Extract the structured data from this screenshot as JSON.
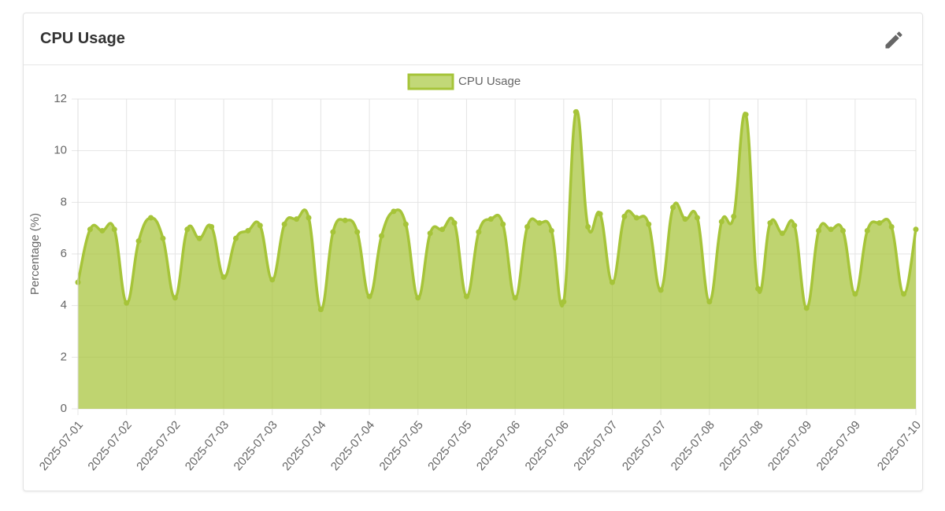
{
  "card": {
    "title": "CPU Usage"
  },
  "chart_data": {
    "type": "area",
    "ylabel": "Percentage (%)",
    "categories": [
      "2025-07-01",
      null,
      null,
      null,
      "2025-07-02",
      null,
      null,
      null,
      "2025-07-02",
      null,
      null,
      null,
      "2025-07-03",
      null,
      null,
      null,
      "2025-07-03",
      null,
      null,
      null,
      "2025-07-04",
      null,
      null,
      null,
      "2025-07-04",
      null,
      null,
      null,
      "2025-07-05",
      null,
      null,
      null,
      "2025-07-05",
      null,
      null,
      null,
      "2025-07-06",
      null,
      null,
      null,
      "2025-07-06",
      null,
      null,
      null,
      "2025-07-07",
      null,
      null,
      null,
      "2025-07-07",
      null,
      null,
      null,
      "2025-07-08",
      null,
      null,
      null,
      "2025-07-08",
      null,
      null,
      null,
      "2025-07-09",
      null,
      null,
      null,
      "2025-07-09",
      null,
      null,
      null,
      null,
      "2025-07-10"
    ],
    "series": [
      {
        "name": "CPU Usage",
        "color": "#a6c439",
        "values": [
          4.9,
          6.95,
          6.9,
          6.95,
          4.1,
          6.5,
          7.4,
          6.6,
          4.3,
          6.95,
          6.6,
          7.05,
          5.1,
          6.6,
          6.9,
          7.1,
          5.0,
          7.15,
          7.35,
          7.4,
          3.85,
          6.85,
          7.3,
          6.85,
          4.35,
          6.7,
          7.65,
          7.15,
          4.3,
          6.8,
          6.95,
          7.2,
          4.35,
          6.85,
          7.35,
          7.15,
          4.3,
          7.05,
          7.2,
          6.9,
          4.15,
          11.5,
          7.05,
          7.55,
          4.9,
          7.45,
          7.4,
          7.15,
          4.6,
          7.8,
          7.35,
          7.4,
          4.15,
          7.25,
          7.45,
          11.4,
          4.65,
          7.2,
          6.8,
          7.1,
          3.9,
          6.9,
          6.95,
          6.9,
          4.45,
          6.9,
          7.2,
          7.05,
          4.45,
          6.95
        ]
      }
    ],
    "ylim": [
      0,
      12
    ],
    "yticks": [
      0,
      2,
      4,
      6,
      8,
      10,
      12
    ],
    "grid": true,
    "legend": "top"
  }
}
